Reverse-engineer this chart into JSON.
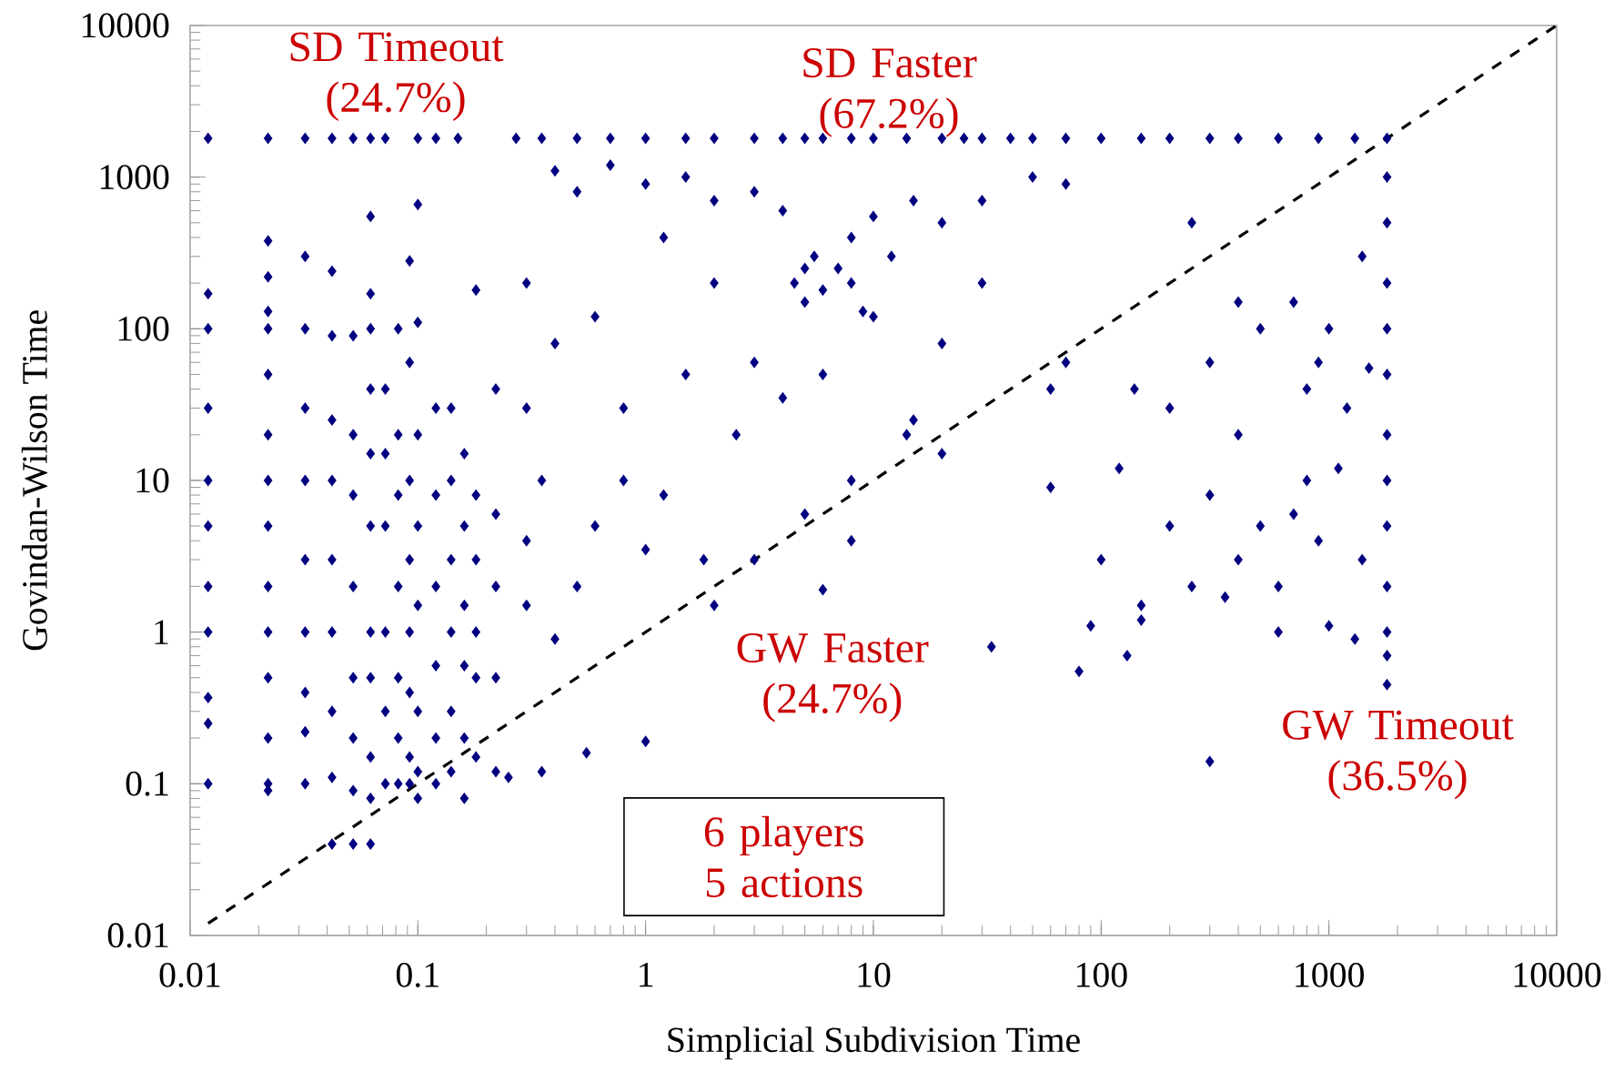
{
  "chart_data": {
    "type": "scatter",
    "xlabel": "Simplicial Subdivision Time",
    "ylabel": "Govindan-Wilson Time",
    "log": "xy",
    "grid": false,
    "marker": "diamond",
    "xlim": [
      0.01,
      10000
    ],
    "ylim": [
      0.01,
      10000
    ],
    "xticks": [
      0.01,
      0.1,
      1,
      10,
      100,
      1000,
      10000
    ],
    "yticks": [
      0.01,
      0.1,
      1,
      10,
      100,
      1000,
      10000
    ],
    "annotations": [
      "SD Timeout (24.7%)",
      "SD Faster (67.2%)",
      "GW Faster (24.7%)",
      "GW Timeout (36.5%)",
      "6 players 5 actions"
    ],
    "series": [
      {
        "color": "#000080",
        "x": [
          0.012,
          0.012,
          0.012,
          0.012,
          0.012,
          0.012,
          0.012,
          0.012,
          0.012,
          0.012,
          0.012,
          0.022,
          0.022,
          0.022,
          0.022,
          0.022,
          0.022,
          0.022,
          0.022,
          0.022,
          0.022,
          0.022,
          0.022,
          0.022,
          0.022,
          0.022,
          0.032,
          0.032,
          0.032,
          0.032,
          0.032,
          0.032,
          0.032,
          0.032,
          0.032,
          0.032,
          0.042,
          0.042,
          0.042,
          0.042,
          0.042,
          0.042,
          0.042,
          0.042,
          0.042,
          0.042,
          0.052,
          0.052,
          0.052,
          0.052,
          0.052,
          0.052,
          0.052,
          0.052,
          0.052,
          0.062,
          0.062,
          0.062,
          0.062,
          0.062,
          0.062,
          0.062,
          0.062,
          0.062,
          0.062,
          0.062,
          0.062,
          0.072,
          0.072,
          0.072,
          0.072,
          0.072,
          0.072,
          0.072,
          0.082,
          0.082,
          0.082,
          0.082,
          0.082,
          0.082,
          0.082,
          0.092,
          0.092,
          0.092,
          0.092,
          0.092,
          0.092,
          0.092,
          0.092,
          0.1,
          0.1,
          0.1,
          0.1,
          0.1,
          0.1,
          0.1,
          0.1,
          0.1,
          0.12,
          0.12,
          0.12,
          0.12,
          0.12,
          0.12,
          0.12,
          0.14,
          0.14,
          0.14,
          0.14,
          0.14,
          0.14,
          0.16,
          0.16,
          0.16,
          0.16,
          0.16,
          0.16,
          0.18,
          0.18,
          0.18,
          0.18,
          0.18,
          0.18,
          0.22,
          0.22,
          0.22,
          0.22,
          0.22,
          0.15,
          0.27,
          0.35,
          0.5,
          0.7,
          1,
          1.5,
          2,
          3,
          4,
          5,
          6,
          8,
          10,
          14,
          20,
          25,
          30,
          40,
          50,
          70,
          100,
          150,
          200,
          300,
          400,
          600,
          900,
          1300,
          1800,
          1800,
          1800,
          1800,
          1800,
          1800,
          1800,
          1800,
          1800,
          1800,
          1800,
          1800,
          1800,
          0.4,
          0.5,
          0.7,
          1,
          1.5,
          2,
          3,
          4,
          4.5,
          5,
          5,
          5.5,
          6,
          7,
          8,
          8,
          9,
          10,
          12,
          15,
          20,
          30,
          50,
          70,
          0.3,
          0.6,
          1.2,
          2,
          3,
          0.4,
          0.8,
          1.5,
          2.5,
          4,
          6,
          10,
          20,
          30,
          60,
          15,
          0.3,
          0.35,
          0.3,
          0.3,
          0.4,
          0.5,
          0.6,
          0.8,
          1,
          1.2,
          1.8,
          2,
          3,
          5,
          6,
          8,
          1,
          0.55,
          0.35,
          0.25,
          33,
          300,
          8,
          14,
          20,
          60,
          70,
          80,
          90,
          100,
          120,
          140,
          150,
          200,
          250,
          300,
          300,
          400,
          400,
          500,
          500,
          600,
          700,
          800,
          800,
          900,
          1000,
          1000,
          1200,
          1300,
          1400,
          250,
          400,
          600,
          150,
          130,
          200,
          700,
          1100,
          350,
          900,
          1400,
          1500
        ],
        "values": [
          0.1,
          0.25,
          0.37,
          1,
          2,
          5,
          10,
          30,
          100,
          170,
          1800,
          0.09,
          0.1,
          0.2,
          0.5,
          1,
          2,
          5,
          10,
          20,
          50,
          100,
          130,
          220,
          380,
          1800,
          0.1,
          0.22,
          0.4,
          1,
          3,
          10,
          30,
          100,
          300,
          1800,
          0.04,
          0.11,
          0.3,
          1,
          3,
          10,
          25,
          90,
          240,
          1800,
          0.04,
          0.09,
          0.2,
          0.5,
          2,
          8,
          20,
          90,
          1800,
          0.04,
          0.08,
          0.15,
          0.5,
          1,
          5,
          15,
          40,
          100,
          170,
          550,
          1800,
          0.1,
          0.3,
          1,
          5,
          15,
          40,
          1800,
          0.1,
          0.2,
          0.5,
          2,
          8,
          20,
          100,
          0.1,
          0.15,
          0.4,
          1,
          3,
          10,
          60,
          280,
          0.08,
          0.12,
          0.3,
          1.5,
          5,
          20,
          110,
          660,
          1800,
          0.1,
          0.2,
          0.6,
          2,
          8,
          30,
          1800,
          0.12,
          0.3,
          1,
          3,
          10,
          30,
          0.08,
          0.2,
          0.6,
          1.5,
          5,
          15,
          0.15,
          0.5,
          1,
          3,
          8,
          180,
          0.12,
          0.5,
          2,
          6,
          40,
          1800,
          1800,
          1800,
          1800,
          1800,
          1800,
          1800,
          1800,
          1800,
          1800,
          1800,
          1800,
          1800,
          1800,
          1800,
          1800,
          1800,
          1800,
          1800,
          1800,
          1800,
          1800,
          1800,
          1800,
          1800,
          1800,
          1800,
          1800,
          1800,
          0.45,
          0.7,
          1,
          2,
          5,
          10,
          20,
          50,
          100,
          200,
          500,
          1000,
          1800,
          1100,
          800,
          1200,
          900,
          1000,
          700,
          800,
          600,
          200,
          150,
          250,
          300,
          180,
          250,
          400,
          200,
          130,
          550,
          300,
          700,
          500,
          700,
          1000,
          900,
          200,
          120,
          400,
          200,
          60,
          80,
          30,
          50,
          20,
          35,
          50,
          120,
          80,
          200,
          40,
          25,
          30,
          10,
          4,
          1.5,
          0.9,
          2,
          5,
          10,
          3.5,
          8,
          3,
          1.5,
          3,
          6,
          1.9,
          4,
          0.19,
          0.16,
          0.12,
          0.11,
          0.8,
          0.14,
          10,
          20,
          15,
          9,
          60,
          0.55,
          1.1,
          3,
          12,
          40,
          1.5,
          5,
          2,
          8,
          60,
          3,
          20,
          100,
          5,
          2,
          150,
          10,
          40,
          4,
          100,
          1.1,
          30,
          0.9,
          300,
          500,
          150,
          1,
          1.2,
          0.7,
          30,
          6,
          12,
          1.7,
          60,
          3,
          55
        ]
      },
      {
        "type": "line",
        "color": "#000000",
        "marker": "none",
        "line_style": "dashed",
        "x": [
          0.012,
          10000
        ],
        "values": [
          0.012,
          10000
        ]
      }
    ]
  }
}
